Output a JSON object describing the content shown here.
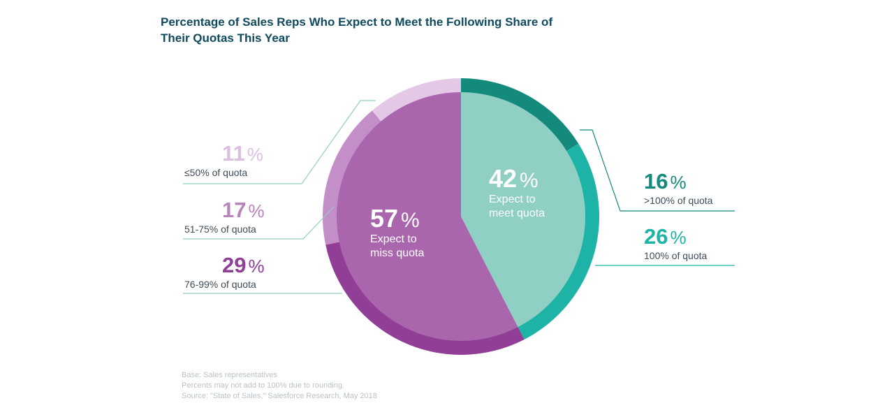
{
  "title": "Percentage of Sales Reps Who Expect to Meet the Following Share of Their Quotas This Year",
  "chart_data": {
    "type": "pie",
    "title": "Percentage of Sales Reps Who Expect to Meet the Following Share of Their Quotas This Year",
    "groups": [
      {
        "name": "Expect to meet quota",
        "value": 42,
        "value_label": "42",
        "label_lines": [
          "Expect to",
          "meet quota"
        ],
        "color": "#8fcfc4"
      },
      {
        "name": "Expect to miss quota",
        "value": 57,
        "value_label": "57",
        "label_lines": [
          "Expect to",
          "miss quota"
        ],
        "color": "#a966ac"
      }
    ],
    "segments": [
      {
        "label": ">100% of quota",
        "value": 16,
        "value_label": "16",
        "group": "meet",
        "color": "#138a7c",
        "text_color": "#138a7c"
      },
      {
        "label": "100% of quota",
        "value": 26,
        "value_label": "26",
        "group": "meet",
        "color": "#1db3a6",
        "text_color": "#1db3a6"
      },
      {
        "label": "76-99% of quota",
        "value": 29,
        "value_label": "29",
        "group": "miss",
        "color": "#913e96",
        "text_color": "#913e96"
      },
      {
        "label": "51-75% of quota",
        "value": 17,
        "value_label": "17",
        "group": "miss",
        "color": "#c48fc8",
        "text_color": "#b884bc"
      },
      {
        "label": "≤50% of quota",
        "value": 11,
        "value_label": "11",
        "group": "miss",
        "color": "#e4c9e6",
        "text_color": "#dcbfe0"
      }
    ],
    "percent_sign": "%"
  },
  "footnote": {
    "lines": [
      "Base: Sales representatives",
      "Percents may not add to 100% due to rounding.",
      "Source: \"State of Sales,\" Salesforce Research, May 2018"
    ]
  }
}
